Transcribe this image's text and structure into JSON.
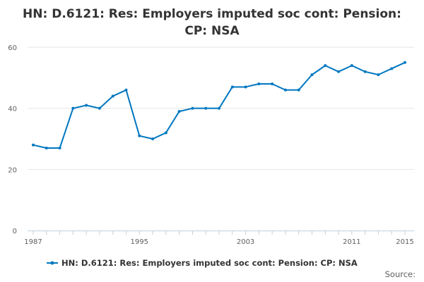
{
  "chart_data": {
    "type": "line",
    "title": "HN: D.6121: Res: Employers imputed soc cont: Pension: CP: NSA",
    "xlabel": "",
    "ylabel": "",
    "x": [
      1987,
      1988,
      1989,
      1990,
      1991,
      1992,
      1993,
      1994,
      1995,
      1996,
      1997,
      1998,
      1999,
      2000,
      2001,
      2002,
      2003,
      2004,
      2005,
      2006,
      2007,
      2008,
      2009,
      2010,
      2011,
      2012,
      2013,
      2014,
      2015
    ],
    "series": [
      {
        "name": "HN: D.6121: Res: Employers imputed soc cont: Pension: CP: NSA",
        "values": [
          28,
          27,
          27,
          40,
          41,
          40,
          44,
          46,
          31,
          30,
          32,
          39,
          40,
          40,
          40,
          47,
          47,
          48,
          48,
          46,
          46,
          51,
          54,
          52,
          54,
          52,
          51,
          53,
          55
        ]
      }
    ],
    "xlim": [
      1987,
      2015
    ],
    "ylim": [
      0,
      60
    ],
    "x_ticks": [
      1987,
      1995,
      2003,
      2011,
      2015
    ],
    "y_ticks": [
      0,
      20,
      40,
      60
    ],
    "grid": true,
    "legend_position": "bottom",
    "color": "#0077c0",
    "source_label": "Source:"
  }
}
